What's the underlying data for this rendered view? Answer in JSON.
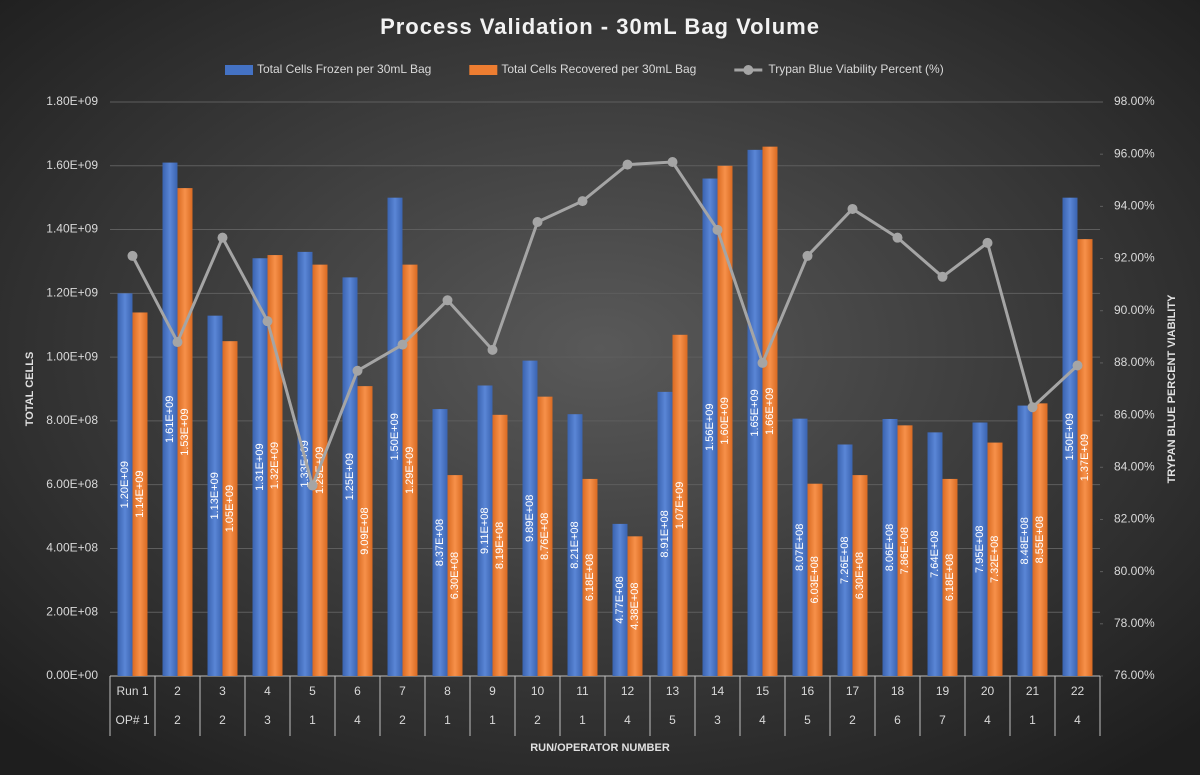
{
  "chart_data": {
    "type": "bar",
    "title": "Process Validation - 30mL Bag Volume",
    "x_label": "RUN/OPERATOR NUMBER",
    "y_label": "TOTAL CELLS",
    "y2_label": "TRYPAN BLUE PERCENT VIABILITY",
    "categories": [
      "Run 1",
      "2",
      "3",
      "4",
      "5",
      "6",
      "7",
      "8",
      "9",
      "10",
      "11",
      "12",
      "13",
      "14",
      "15",
      "16",
      "17",
      "18",
      "19",
      "20",
      "21",
      "22"
    ],
    "operators": [
      "OP# 1",
      "2",
      "2",
      "3",
      "1",
      "4",
      "2",
      "1",
      "1",
      "2",
      "1",
      "4",
      "5",
      "3",
      "4",
      "5",
      "2",
      "6",
      "7",
      "4",
      "1",
      "4"
    ],
    "series": [
      {
        "name": "Total Cells Frozen per 30mL Bag",
        "color": "#4472c4",
        "type": "bar",
        "values": [
          1200000000,
          1610000000,
          1130000000,
          1310000000,
          1330000000,
          1250000000,
          1500000000,
          837000000,
          911000000,
          989000000,
          821000000,
          477000000,
          891000000,
          1560000000,
          1650000000,
          807000000,
          726000000,
          806000000,
          764000000,
          795000000,
          848000000,
          1500000000
        ],
        "value_labels": [
          "1.20E+09",
          "1.61E+09",
          "1.13E+09",
          "1.31E+09",
          "1.33E+09",
          "1.25E+09",
          "1.50E+09",
          "8.37E+08",
          "9.11E+08",
          "9.89E+08",
          "8.21E+08",
          "4.77E+08",
          "8.91E+08",
          "1.56E+09",
          "1.65E+09",
          "8.07E+08",
          "7.26E+08",
          "8.06E+08",
          "7.64E+08",
          "7.95E+08",
          "8.48E+08",
          "1.50E+09"
        ]
      },
      {
        "name": "Total Cells Recovered per 30mL Bag",
        "color": "#ed7d31",
        "type": "bar",
        "values": [
          1140000000,
          1530000000,
          1050000000,
          1320000000,
          1290000000,
          909000000,
          1290000000,
          630000000,
          819000000,
          876000000,
          618000000,
          438000000,
          1070000000,
          1600000000,
          1660000000,
          603000000,
          630000000,
          786000000,
          618000000,
          732000000,
          855000000,
          1370000000
        ],
        "value_labels": [
          "1.14E+09",
          "1.53E+09",
          "1.05E+09",
          "1.32E+09",
          "1.29E+09",
          "9.09E+08",
          "1.29E+09",
          "6.30E+08",
          "8.19E+08",
          "8.76E+08",
          "6.18E+08",
          "4.38E+08",
          "1.07E+09",
          "1.60E+09",
          "1.66E+09",
          "6.03E+08",
          "6.30E+08",
          "7.86E+08",
          "6.18E+08",
          "7.32E+08",
          "8.55E+08",
          "1.37E+09"
        ]
      },
      {
        "name": "Trypan Blue Viability Percent (%)",
        "color": "#a5a5a5",
        "type": "line",
        "axis": "y2",
        "values": [
          92.1,
          88.8,
          92.8,
          89.6,
          83.3,
          87.7,
          88.7,
          90.4,
          88.5,
          93.4,
          94.2,
          95.6,
          95.7,
          93.1,
          88.0,
          92.1,
          93.9,
          92.8,
          91.3,
          92.6,
          86.3,
          87.9
        ]
      }
    ],
    "ylim": [
      0,
      1800000000
    ],
    "yticks": [
      {
        "value": 0,
        "label": "0.00E+00"
      },
      {
        "value": 200000000,
        "label": "2.00E+08"
      },
      {
        "value": 400000000,
        "label": "4.00E+08"
      },
      {
        "value": 600000000,
        "label": "6.00E+08"
      },
      {
        "value": 800000000,
        "label": "8.00E+08"
      },
      {
        "value": 1000000000,
        "label": "1.00E+09"
      },
      {
        "value": 1200000000,
        "label": "1.20E+09"
      },
      {
        "value": 1400000000,
        "label": "1.40E+09"
      },
      {
        "value": 1600000000,
        "label": "1.60E+09"
      },
      {
        "value": 1800000000,
        "label": "1.80E+09"
      }
    ],
    "y2lim": [
      76,
      98
    ],
    "y2ticks": [
      {
        "value": 76,
        "label": "76.00%"
      },
      {
        "value": 78,
        "label": "78.00%"
      },
      {
        "value": 80,
        "label": "80.00%"
      },
      {
        "value": 82,
        "label": "82.00%"
      },
      {
        "value": 84,
        "label": "84.00%"
      },
      {
        "value": 86,
        "label": "86.00%"
      },
      {
        "value": 88,
        "label": "88.00%"
      },
      {
        "value": 90,
        "label": "90.00%"
      },
      {
        "value": 92,
        "label": "92.00%"
      },
      {
        "value": 94,
        "label": "94.00%"
      },
      {
        "value": 96,
        "label": "96.00%"
      },
      {
        "value": 98,
        "label": "98.00%"
      }
    ],
    "grid": true,
    "legend": "top"
  }
}
